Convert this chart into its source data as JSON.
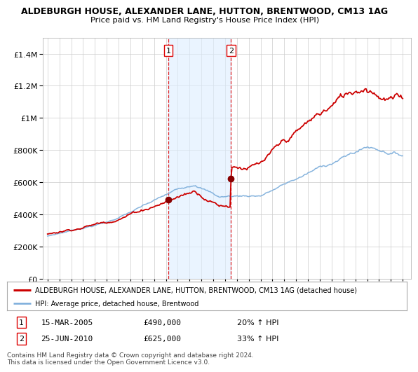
{
  "title1": "ALDEBURGH HOUSE, ALEXANDER LANE, HUTTON, BRENTWOOD, CM13 1AG",
  "title2": "Price paid vs. HM Land Registry's House Price Index (HPI)",
  "red_label": "ALDEBURGH HOUSE, ALEXANDER LANE, HUTTON, BRENTWOOD, CM13 1AG (detached house)",
  "blue_label": "HPI: Average price, detached house, Brentwood",
  "purchase1_date": "15-MAR-2005",
  "purchase1_price": 490000,
  "purchase1_hpi": "20%",
  "purchase2_date": "25-JUN-2010",
  "purchase2_price": 625000,
  "purchase2_hpi": "33%",
  "purchase1_x": 2005.21,
  "purchase2_x": 2010.49,
  "vline_color": "#dd0000",
  "vline_fill": "#ddeeff",
  "red_color": "#cc0000",
  "blue_color": "#7aacda",
  "grid_color": "#cccccc",
  "background_color": "#ffffff",
  "ylim": [
    0,
    1500000
  ],
  "xlim_left": 1994.6,
  "xlim_right": 2025.7,
  "footnote": "Contains HM Land Registry data © Crown copyright and database right 2024.\nThis data is licensed under the Open Government Licence v3.0."
}
